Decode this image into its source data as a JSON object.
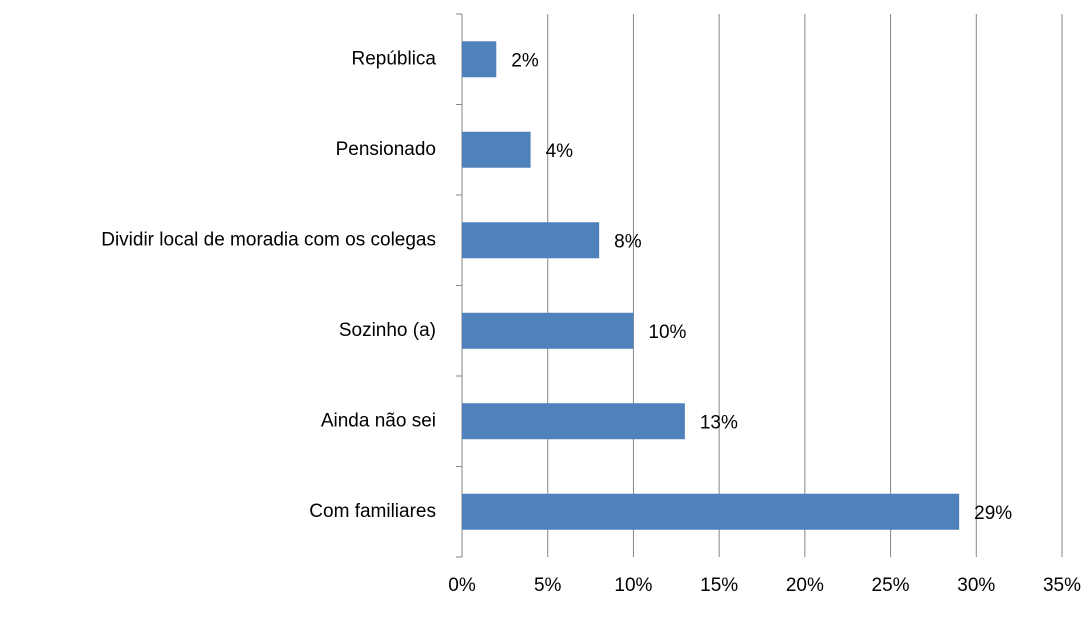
{
  "chart_data": {
    "type": "bar",
    "orientation": "horizontal",
    "categories": [
      "República",
      "Pensionado",
      "Dividir local de moradia com os colegas",
      "Sozinho (a)",
      "Ainda não sei",
      "Com familiares"
    ],
    "values": [
      2,
      4,
      8,
      10,
      13,
      29
    ],
    "value_labels": [
      "2%",
      "4%",
      "8%",
      "10%",
      "13%",
      "29%"
    ],
    "color": "#4f81bd",
    "xlim": [
      0,
      35
    ],
    "xticks": [
      {
        "value": 0,
        "label": "0%"
      },
      {
        "value": 5,
        "label": "5%"
      },
      {
        "value": 10,
        "label": "10%"
      },
      {
        "value": 15,
        "label": "15%"
      },
      {
        "value": 20,
        "label": "20%"
      },
      {
        "value": 25,
        "label": "25%"
      },
      {
        "value": 30,
        "label": "30%"
      },
      {
        "value": 35,
        "label": "35%"
      }
    ],
    "grid": true
  }
}
